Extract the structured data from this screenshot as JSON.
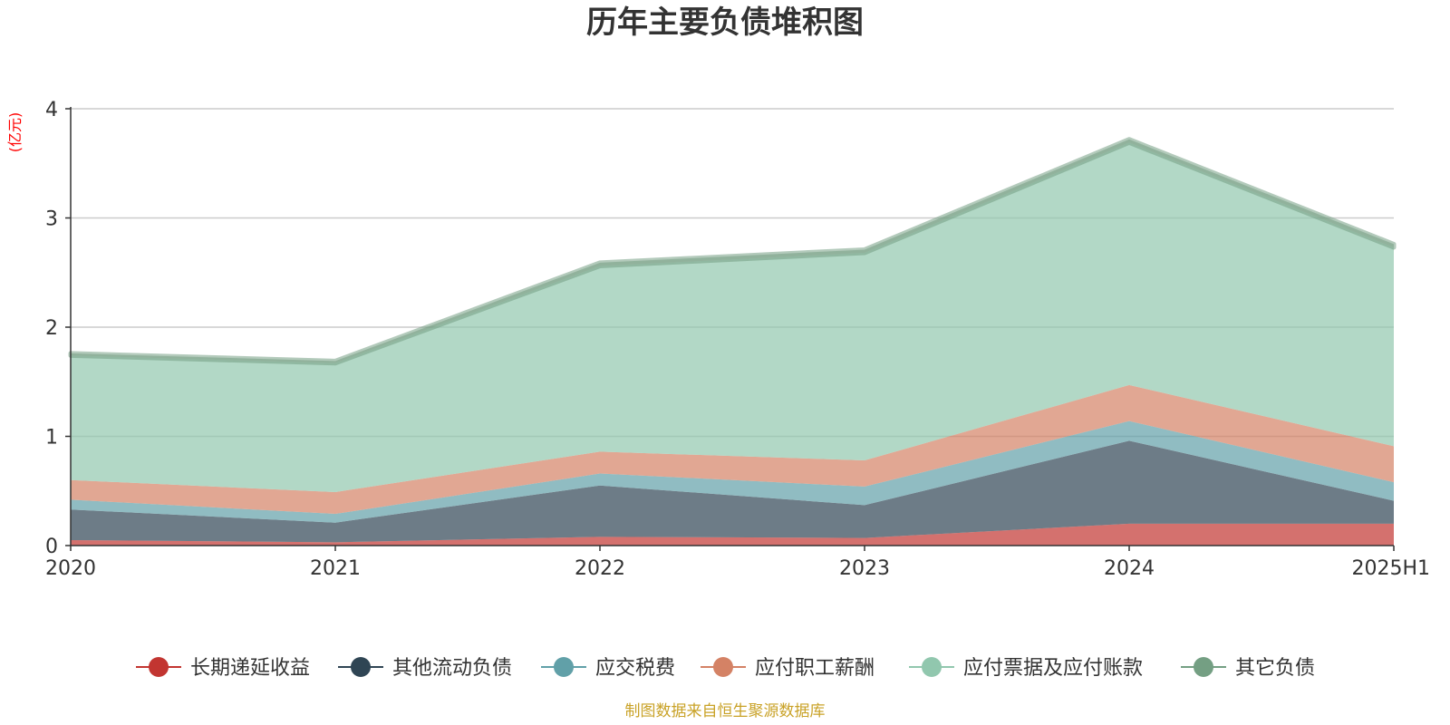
{
  "chart_data": {
    "type": "area",
    "stacked": true,
    "title": "历年主要负债堆积图",
    "y_unit": "(亿元)",
    "x": [
      "2020",
      "2021",
      "2022",
      "2023",
      "2024",
      "2025H1"
    ],
    "ylim": [
      0,
      4
    ],
    "y_ticks": [
      "0",
      "1",
      "2",
      "3",
      "4"
    ],
    "grid": true,
    "legend_position": "bottom",
    "series": [
      {
        "name": "长期递延收益",
        "color": "#c23531",
        "values": [
          0.05,
          0.03,
          0.08,
          0.07,
          0.2,
          0.2
        ]
      },
      {
        "name": "其他流动负债",
        "color": "#2f4554",
        "values": [
          0.28,
          0.18,
          0.47,
          0.3,
          0.76,
          0.21
        ]
      },
      {
        "name": "应交税费",
        "color": "#61a0a8",
        "values": [
          0.09,
          0.08,
          0.11,
          0.17,
          0.18,
          0.17
        ]
      },
      {
        "name": "应付职工薪酬",
        "color": "#d48265",
        "values": [
          0.18,
          0.2,
          0.2,
          0.24,
          0.33,
          0.33
        ]
      },
      {
        "name": "应付票据及应付账款",
        "color": "#91c7ae",
        "values": [
          1.14,
          1.18,
          1.7,
          1.9,
          2.22,
          1.82
        ]
      },
      {
        "name": "其它负债",
        "color": "#749f83",
        "values": [
          0.02,
          0.02,
          0.03,
          0.03,
          0.03,
          0.03
        ]
      }
    ],
    "source_note": "制图数据来自恒生聚源数据库",
    "unit_color": "#ff0000",
    "source_color": "#c9a227"
  }
}
